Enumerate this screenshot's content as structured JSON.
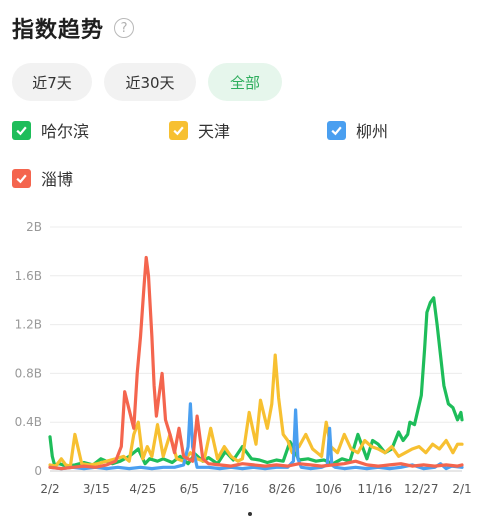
{
  "header": {
    "title": "指数趋势",
    "help_glyph": "?"
  },
  "tabs": [
    {
      "label": "近7天",
      "active": false
    },
    {
      "label": "近30天",
      "active": false
    },
    {
      "label": "全部",
      "active": true
    }
  ],
  "legend": [
    {
      "label": "哈尔滨",
      "color": "#1ebd5a",
      "icon": "checkbox-checked-icon"
    },
    {
      "label": "天津",
      "color": "#f7c031",
      "icon": "checkbox-checked-icon"
    },
    {
      "label": "柳州",
      "color": "#4a9ff0",
      "icon": "checkbox-checked-icon"
    },
    {
      "label": "淄博",
      "color": "#f4654e",
      "icon": "checkbox-checked-icon"
    }
  ],
  "chart_data": {
    "type": "line",
    "title": "",
    "xlabel": "",
    "ylabel": "",
    "y_ticks": [
      "0",
      "0.4B",
      "0.8B",
      "1.2B",
      "1.6B",
      "2B"
    ],
    "ylim": [
      0,
      2
    ],
    "y_unit": "B",
    "x_ticks": [
      "2/2",
      "3/15",
      "4/25",
      "6/5",
      "7/16",
      "8/26",
      "10/6",
      "11/16",
      "12/27",
      "2/1"
    ],
    "grid": true,
    "legend_position": "top",
    "x_day_index": [
      0,
      41,
      82,
      123,
      164,
      205,
      246,
      287,
      328,
      364
    ],
    "series": [
      {
        "name": "哈尔滨",
        "color": "#1ebd5a",
        "x": [
          0,
          2,
          4,
          8,
          15,
          22,
          30,
          38,
          45,
          55,
          62,
          70,
          78,
          84,
          88,
          95,
          100,
          108,
          115,
          122,
          128,
          135,
          140,
          148,
          155,
          162,
          170,
          178,
          185,
          192,
          200,
          206,
          212,
          220,
          228,
          235,
          242,
          250,
          258,
          265,
          272,
          280,
          285,
          290,
          296,
          302,
          308,
          312,
          316,
          318,
          322,
          325,
          328,
          331,
          333,
          336,
          339,
          342,
          345,
          348,
          352,
          356,
          360,
          363,
          364
        ],
        "y": [
          0.28,
          0.12,
          0.05,
          0.06,
          0.04,
          0.05,
          0.07,
          0.05,
          0.1,
          0.06,
          0.08,
          0.12,
          0.18,
          0.06,
          0.1,
          0.08,
          0.1,
          0.07,
          0.12,
          0.06,
          0.14,
          0.08,
          0.11,
          0.06,
          0.16,
          0.09,
          0.2,
          0.1,
          0.09,
          0.07,
          0.09,
          0.08,
          0.24,
          0.09,
          0.1,
          0.08,
          0.09,
          0.06,
          0.1,
          0.08,
          0.3,
          0.1,
          0.25,
          0.22,
          0.15,
          0.18,
          0.32,
          0.25,
          0.3,
          0.4,
          0.38,
          0.5,
          0.62,
          1.0,
          1.3,
          1.38,
          1.42,
          1.2,
          0.95,
          0.7,
          0.55,
          0.52,
          0.42,
          0.48,
          0.42
        ]
      },
      {
        "name": "天津",
        "color": "#f7c031",
        "x": [
          0,
          5,
          10,
          14,
          18,
          22,
          28,
          35,
          42,
          50,
          58,
          65,
          70,
          74,
          78,
          82,
          86,
          90,
          95,
          100,
          106,
          112,
          118,
          124,
          130,
          136,
          142,
          148,
          154,
          160,
          166,
          170,
          176,
          182,
          186,
          192,
          196,
          199,
          202,
          206,
          210,
          214,
          220,
          226,
          232,
          236,
          240,
          244,
          248,
          254,
          260,
          266,
          272,
          278,
          284,
          290,
          296,
          302,
          308,
          314,
          320,
          326,
          332,
          338,
          344,
          350,
          356,
          360,
          364
        ],
        "y": [
          0.05,
          0.04,
          0.1,
          0.05,
          0.04,
          0.3,
          0.06,
          0.05,
          0.06,
          0.08,
          0.1,
          0.12,
          0.08,
          0.3,
          0.4,
          0.1,
          0.2,
          0.12,
          0.38,
          0.12,
          0.3,
          0.1,
          0.08,
          0.15,
          0.1,
          0.08,
          0.35,
          0.1,
          0.2,
          0.12,
          0.08,
          0.1,
          0.48,
          0.22,
          0.58,
          0.35,
          0.55,
          0.95,
          0.6,
          0.3,
          0.25,
          0.15,
          0.2,
          0.3,
          0.18,
          0.15,
          0.12,
          0.4,
          0.2,
          0.15,
          0.3,
          0.18,
          0.15,
          0.25,
          0.2,
          0.18,
          0.15,
          0.2,
          0.12,
          0.15,
          0.18,
          0.2,
          0.15,
          0.22,
          0.18,
          0.25,
          0.15,
          0.22,
          0.22
        ]
      },
      {
        "name": "柳州",
        "color": "#4a9ff0",
        "x": [
          0,
          10,
          20,
          30,
          40,
          50,
          60,
          70,
          80,
          90,
          100,
          110,
          118,
          122,
          124,
          126,
          130,
          140,
          150,
          160,
          170,
          180,
          190,
          200,
          210,
          215,
          217,
          219,
          222,
          230,
          240,
          245,
          247,
          249,
          252,
          260,
          270,
          280,
          290,
          300,
          310,
          320,
          330,
          340,
          345,
          350,
          355,
          364
        ],
        "y": [
          0.03,
          0.02,
          0.03,
          0.02,
          0.03,
          0.02,
          0.03,
          0.02,
          0.03,
          0.02,
          0.03,
          0.03,
          0.05,
          0.2,
          0.55,
          0.2,
          0.03,
          0.03,
          0.02,
          0.03,
          0.02,
          0.03,
          0.02,
          0.03,
          0.03,
          0.08,
          0.5,
          0.1,
          0.03,
          0.02,
          0.03,
          0.05,
          0.35,
          0.05,
          0.03,
          0.02,
          0.03,
          0.02,
          0.03,
          0.02,
          0.03,
          0.05,
          0.02,
          0.03,
          0.06,
          0.02,
          0.04,
          0.03
        ]
      },
      {
        "name": "淄博",
        "color": "#f4654e",
        "x": [
          0,
          10,
          20,
          30,
          40,
          50,
          58,
          63,
          66,
          70,
          74,
          77,
          80,
          83,
          85,
          87,
          90,
          92,
          94,
          96,
          99,
          102,
          106,
          110,
          114,
          118,
          122,
          126,
          130,
          135,
          140,
          150,
          160,
          170,
          180,
          190,
          200,
          210,
          220,
          230,
          240,
          250,
          260,
          270,
          280,
          290,
          300,
          310,
          320,
          330,
          340,
          350,
          360,
          364
        ],
        "y": [
          0.03,
          0.02,
          0.03,
          0.04,
          0.03,
          0.05,
          0.08,
          0.2,
          0.65,
          0.5,
          0.35,
          0.8,
          1.1,
          1.5,
          1.75,
          1.6,
          1.1,
          0.7,
          0.45,
          0.6,
          0.8,
          0.42,
          0.3,
          0.15,
          0.35,
          0.12,
          0.1,
          0.08,
          0.45,
          0.1,
          0.06,
          0.05,
          0.04,
          0.06,
          0.05,
          0.04,
          0.05,
          0.04,
          0.06,
          0.05,
          0.04,
          0.05,
          0.06,
          0.08,
          0.05,
          0.04,
          0.05,
          0.06,
          0.04,
          0.05,
          0.04,
          0.05,
          0.04,
          0.05
        ]
      }
    ]
  }
}
